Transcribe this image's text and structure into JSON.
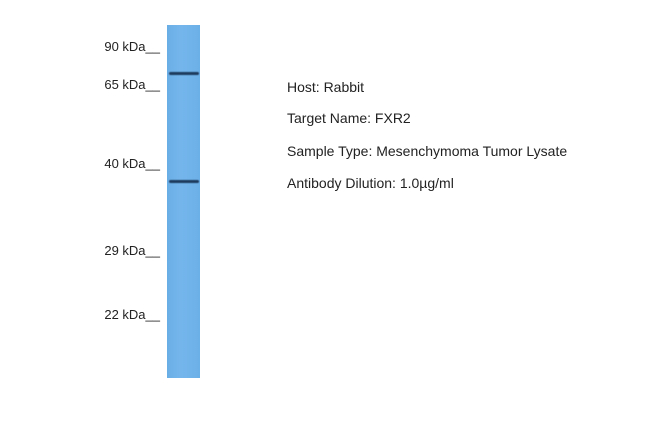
{
  "markers": [
    "90 kDa__",
    "65 kDa__",
    "40 kDa__",
    "29 kDa__",
    "22 kDa__"
  ],
  "lane_color": "#6fb2ea",
  "info": {
    "host": "Host: Rabbit",
    "target": "Target Name: FXR2",
    "sample": "Sample Type: Mesenchymoma Tumor Lysate",
    "dilution": "Antibody Dilution: 1.0µg/ml"
  }
}
